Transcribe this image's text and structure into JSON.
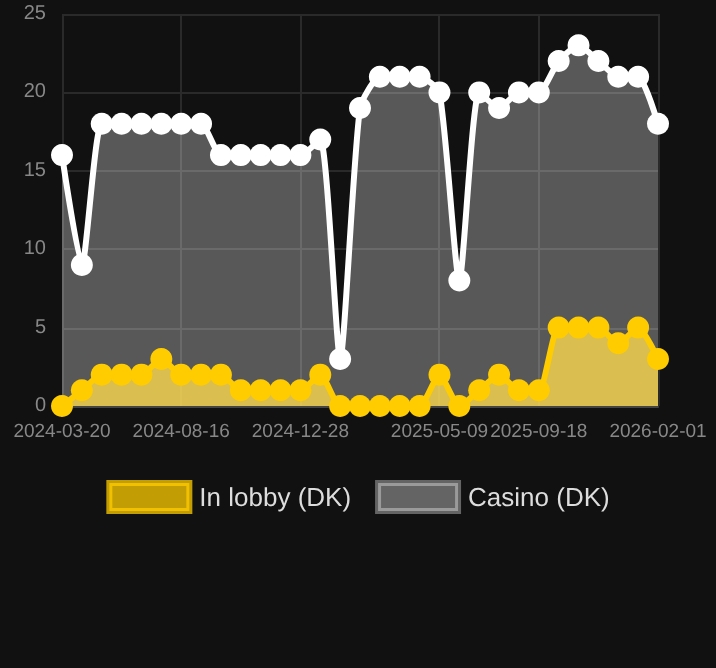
{
  "chart_data": {
    "type": "area",
    "categories": [
      "2024-03-20",
      null,
      null,
      null,
      null,
      null,
      "2024-08-16",
      null,
      null,
      null,
      null,
      null,
      "2024-12-28",
      null,
      null,
      null,
      null,
      null,
      null,
      "2025-05-09",
      null,
      null,
      null,
      null,
      "2025-09-18",
      null,
      null,
      null,
      null,
      null,
      "2026-02-01"
    ],
    "series": [
      {
        "name": "In lobby (DK)",
        "color": "#ffcc00",
        "values": [
          0,
          1,
          2,
          2,
          2,
          3,
          2,
          2,
          2,
          1,
          1,
          1,
          1,
          2,
          0,
          0,
          0,
          0,
          0,
          2,
          0,
          1,
          2,
          1,
          1,
          5,
          5,
          5,
          4,
          5,
          3
        ]
      },
      {
        "name": "Casino (DK)",
        "color": "#ffffff",
        "values": [
          16,
          9,
          18,
          18,
          18,
          18,
          18,
          18,
          16,
          16,
          16,
          16,
          16,
          17,
          3,
          19,
          21,
          21,
          21,
          20,
          8,
          20,
          19,
          20,
          20,
          22,
          23,
          22,
          21,
          21,
          18
        ]
      }
    ],
    "ylim": [
      0,
      25
    ],
    "yticks": [
      0,
      5,
      10,
      15,
      20,
      25
    ],
    "grid": true,
    "legend": "bottom",
    "marker": "circle",
    "line_style": "solid"
  }
}
